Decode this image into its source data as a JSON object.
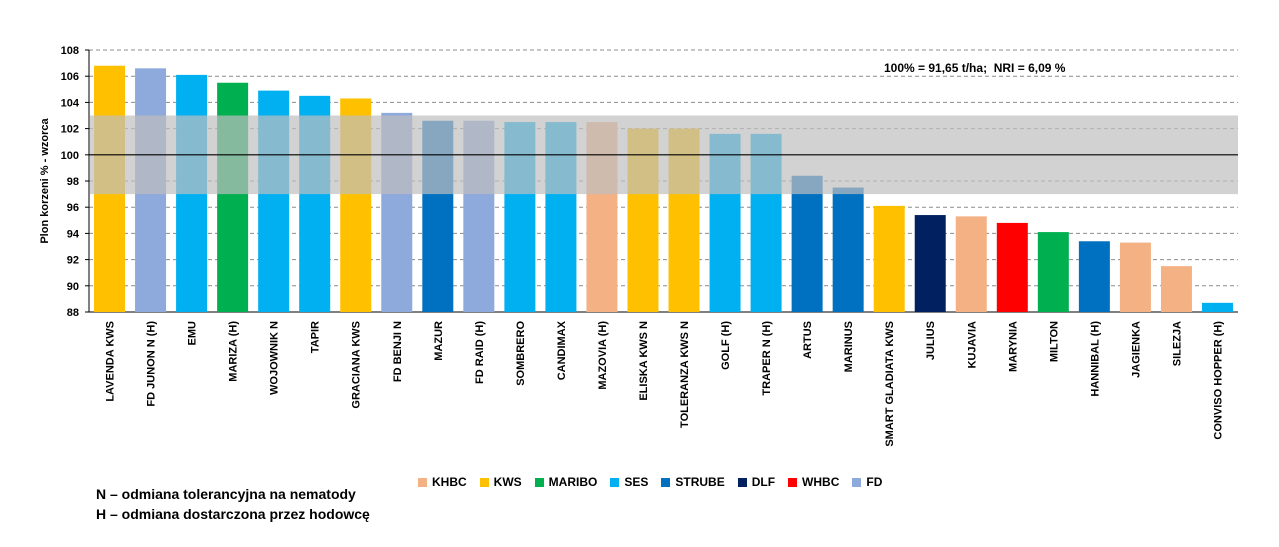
{
  "chart_data": {
    "type": "bar",
    "ylabel": "Plon korzeni % - wzorca",
    "ylim": [
      88,
      108
    ],
    "yticks": [
      88,
      90,
      92,
      94,
      96,
      98,
      100,
      102,
      104,
      106,
      108
    ],
    "reference_line": 100,
    "reference_band": [
      97,
      103
    ],
    "annotation": "100% = 91,65 t/ha;  NRI = 6,09 %",
    "grid": true,
    "legend_position": "bottom",
    "categories": [
      "LAVENDA KWS",
      "FD JUNON N (H)",
      "EMU",
      "MARIZA (H)",
      "WOJOWNIK N",
      "TAPIR",
      "GRACIANA KWS",
      "FD BENJI N",
      "MAZUR",
      "FD RAID (H)",
      "SOMBRERO",
      "CANDIMAX",
      "MAZOVIA (H)",
      "ELISKA KWS N",
      "TOLERANZA KWS N",
      "GOLF (H)",
      "TRAPER N (H)",
      "ARTUS",
      "MARINUS",
      "SMART GLADIATA KWS",
      "JULIUS",
      "KUJAVIA",
      "MARYNIA",
      "MILTON",
      "HANNIBAL (H)",
      "JAGIENKA",
      "SILEZJA",
      "CONVISO HOPPER (H)"
    ],
    "values": [
      106.8,
      106.6,
      106.1,
      105.5,
      104.9,
      104.5,
      104.3,
      103.2,
      102.6,
      102.6,
      102.5,
      102.5,
      102.5,
      102.0,
      102.0,
      101.6,
      101.6,
      98.4,
      97.5,
      96.1,
      95.4,
      95.3,
      94.8,
      94.1,
      93.4,
      93.3,
      91.5,
      88.7
    ],
    "breeders": [
      "KWS",
      "FD",
      "SES",
      "MARIBO",
      "SES",
      "SES",
      "KWS",
      "FD",
      "STRUBE",
      "FD",
      "SES",
      "SES",
      "KHBC",
      "KWS",
      "KWS",
      "SES",
      "SES",
      "STRUBE",
      "STRUBE",
      "KWS",
      "DLF",
      "KHBC",
      "WHBC",
      "MARIBO",
      "STRUBE",
      "KHBC",
      "KHBC",
      "SES"
    ],
    "legend": [
      {
        "name": "KHBC",
        "color": "#F4B183"
      },
      {
        "name": "KWS",
        "color": "#FFC000"
      },
      {
        "name": "MARIBO",
        "color": "#00B050"
      },
      {
        "name": "SES",
        "color": "#00B0F0"
      },
      {
        "name": "STRUBE",
        "color": "#0070C0"
      },
      {
        "name": "DLF",
        "color": "#002060"
      },
      {
        "name": "WHBC",
        "color": "#FF0000"
      },
      {
        "name": "FD",
        "color": "#8EA9DB"
      }
    ],
    "band_color": "#BFBFBF"
  },
  "footnotes": {
    "n": "N – odmiana tolerancyjna na nematody",
    "h": "H – odmiana dostarczona przez hodowcę"
  }
}
